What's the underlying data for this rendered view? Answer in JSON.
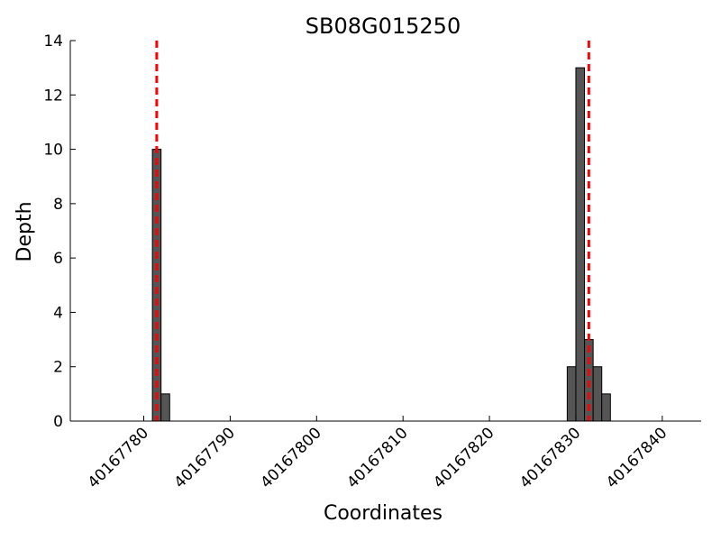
{
  "chart_data": {
    "type": "bar",
    "title": "SB08G015250",
    "xlabel": "Coordinates",
    "ylabel": "Depth",
    "xlim": [
      40167771.5,
      40167844.5
    ],
    "ylim": [
      0,
      14
    ],
    "xticks": [
      40167780,
      40167790,
      40167800,
      40167810,
      40167820,
      40167830,
      40167840
    ],
    "yticks": [
      0,
      2,
      4,
      6,
      8,
      10,
      12,
      14
    ],
    "bar_width": 1,
    "x": [
      40167781,
      40167782,
      40167829,
      40167830,
      40167831,
      40167832,
      40167833
    ],
    "values": [
      10,
      1,
      2,
      13,
      3,
      2,
      1
    ],
    "markers": [
      40167781.5,
      40167831.5
    ],
    "grid": false,
    "colors": {
      "bar": "#555555",
      "bar_edge": "#000000",
      "marker": "#ff0000"
    }
  }
}
